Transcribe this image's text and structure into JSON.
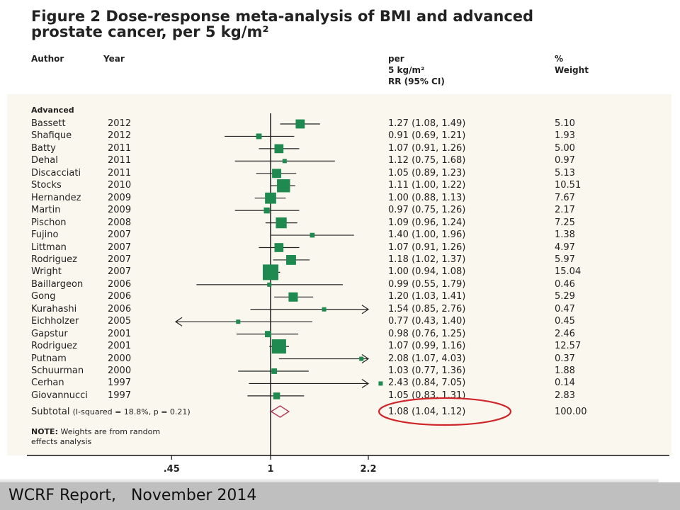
{
  "title_line1": "Figure 2 Dose-response meta-analysis of BMI and advanced",
  "title_line2": "prostate cancer, per 5 kg/m²",
  "headers": {
    "author": "Author",
    "year": "Year",
    "rr_line1": "per",
    "rr_line2": "5 kg/m²",
    "rr_line3": "RR (95% CI)",
    "weight_line1": "%",
    "weight_line2": "Weight"
  },
  "group_label": "Advanced",
  "subtotal": {
    "label": "Subtotal",
    "stats": "(I-squared = 18.8%, p = 0.21)",
    "rr_text": "1.08 (1.04, 1.12)",
    "weight": "100.00"
  },
  "note_label": "NOTE:",
  "note_rest": " Weights are from random",
  "note_line2": "effects analysis",
  "footer": "WCRF Report,   November 2014",
  "colors": {
    "marker": "#1e8a4f",
    "diamond": "#b03a5b",
    "highlight": "#d0262a"
  },
  "chart_data": {
    "type": "forest",
    "x_scale": "log",
    "x_ticks": [
      ".45",
      "1",
      "2.2"
    ],
    "reference_line": 1,
    "rows": [
      {
        "author": "Bassett",
        "year": "2012",
        "rr": 1.27,
        "lo": 1.08,
        "hi": 1.49,
        "rr_text": "1.27 (1.08, 1.49)",
        "weight": "5.10",
        "w": 5.1
      },
      {
        "author": "Shafique",
        "year": "2012",
        "rr": 0.91,
        "lo": 0.69,
        "hi": 1.21,
        "rr_text": "0.91 (0.69, 1.21)",
        "weight": "1.93",
        "w": 1.93
      },
      {
        "author": "Batty",
        "year": "2011",
        "rr": 1.07,
        "lo": 0.91,
        "hi": 1.26,
        "rr_text": "1.07 (0.91, 1.26)",
        "weight": "5.00",
        "w": 5.0
      },
      {
        "author": "Dehal",
        "year": "2011",
        "rr": 1.12,
        "lo": 0.75,
        "hi": 1.68,
        "rr_text": "1.12 (0.75, 1.68)",
        "weight": "0.97",
        "w": 0.97
      },
      {
        "author": "Discacciati",
        "year": "2011",
        "rr": 1.05,
        "lo": 0.89,
        "hi": 1.23,
        "rr_text": "1.05 (0.89, 1.23)",
        "weight": "5.13",
        "w": 5.13
      },
      {
        "author": "Stocks",
        "year": "2010",
        "rr": 1.11,
        "lo": 1.0,
        "hi": 1.22,
        "rr_text": "1.11 (1.00, 1.22)",
        "weight": "10.51",
        "w": 10.51
      },
      {
        "author": "Hernandez",
        "year": "2009",
        "rr": 1.0,
        "lo": 0.88,
        "hi": 1.13,
        "rr_text": "1.00 (0.88, 1.13)",
        "weight": "7.67",
        "w": 7.67
      },
      {
        "author": "Martin",
        "year": "2009",
        "rr": 0.97,
        "lo": 0.75,
        "hi": 1.26,
        "rr_text": "0.97 (0.75, 1.26)",
        "weight": "2.17",
        "w": 2.17
      },
      {
        "author": "Pischon",
        "year": "2008",
        "rr": 1.09,
        "lo": 0.96,
        "hi": 1.24,
        "rr_text": "1.09 (0.96, 1.24)",
        "weight": "7.25",
        "w": 7.25
      },
      {
        "author": "Fujino",
        "year": "2007",
        "rr": 1.4,
        "lo": 1.0,
        "hi": 1.96,
        "rr_text": "1.40 (1.00, 1.96)",
        "weight": "1.38",
        "w": 1.38
      },
      {
        "author": "Littman",
        "year": "2007",
        "rr": 1.07,
        "lo": 0.91,
        "hi": 1.26,
        "rr_text": "1.07 (0.91, 1.26)",
        "weight": "4.97",
        "w": 4.97
      },
      {
        "author": "Rodriguez",
        "year": "2007",
        "rr": 1.18,
        "lo": 1.02,
        "hi": 1.37,
        "rr_text": "1.18 (1.02, 1.37)",
        "weight": "5.97",
        "w": 5.97
      },
      {
        "author": "Wright",
        "year": "2007",
        "rr": 1.0,
        "lo": 0.94,
        "hi": 1.08,
        "rr_text": "1.00 (0.94, 1.08)",
        "weight": "15.04",
        "w": 15.04
      },
      {
        "author": "Baillargeon",
        "year": "2006",
        "rr": 0.99,
        "lo": 0.55,
        "hi": 1.79,
        "rr_text": "0.99 (0.55, 1.79)",
        "weight": "0.46",
        "w": 0.46
      },
      {
        "author": "Gong",
        "year": "2006",
        "rr": 1.2,
        "lo": 1.03,
        "hi": 1.41,
        "rr_text": "1.20 (1.03, 1.41)",
        "weight": "5.29",
        "w": 5.29
      },
      {
        "author": "Kurahashi",
        "year": "2006",
        "rr": 1.54,
        "lo": 0.85,
        "hi": 2.76,
        "rr_text": "1.54 (0.85, 2.76)",
        "weight": "0.47",
        "w": 0.47
      },
      {
        "author": "Eichholzer",
        "year": "2005",
        "rr": 0.77,
        "lo": 0.43,
        "hi": 1.4,
        "rr_text": "0.77 (0.43, 1.40)",
        "weight": "0.45",
        "w": 0.45
      },
      {
        "author": "Gapstur",
        "year": "2001",
        "rr": 0.98,
        "lo": 0.76,
        "hi": 1.25,
        "rr_text": "0.98 (0.76, 1.25)",
        "weight": "2.46",
        "w": 2.46
      },
      {
        "author": "Rodriguez",
        "year": "2001",
        "rr": 1.07,
        "lo": 0.99,
        "hi": 1.16,
        "rr_text": "1.07 (0.99, 1.16)",
        "weight": "12.57",
        "w": 12.57
      },
      {
        "author": "Putnam",
        "year": "2000",
        "rr": 2.08,
        "lo": 1.07,
        "hi": 4.03,
        "rr_text": "2.08 (1.07, 4.03)",
        "weight": "0.37",
        "w": 0.37
      },
      {
        "author": "Schuurman",
        "year": "2000",
        "rr": 1.03,
        "lo": 0.77,
        "hi": 1.36,
        "rr_text": "1.03 (0.77, 1.36)",
        "weight": "1.88",
        "w": 1.88
      },
      {
        "author": "Cerhan",
        "year": "1997",
        "rr": 2.43,
        "lo": 0.84,
        "hi": 7.05,
        "rr_text": "2.43 (0.84, 7.05)",
        "weight": "0.14",
        "w": 0.14
      },
      {
        "author": "Giovannucci",
        "year": "1997",
        "rr": 1.05,
        "lo": 0.83,
        "hi": 1.31,
        "rr_text": "1.05 (0.83, 1.31)",
        "weight": "2.83",
        "w": 2.83
      }
    ],
    "subtotal": {
      "rr": 1.08,
      "lo": 1.04,
      "hi": 1.12
    }
  }
}
